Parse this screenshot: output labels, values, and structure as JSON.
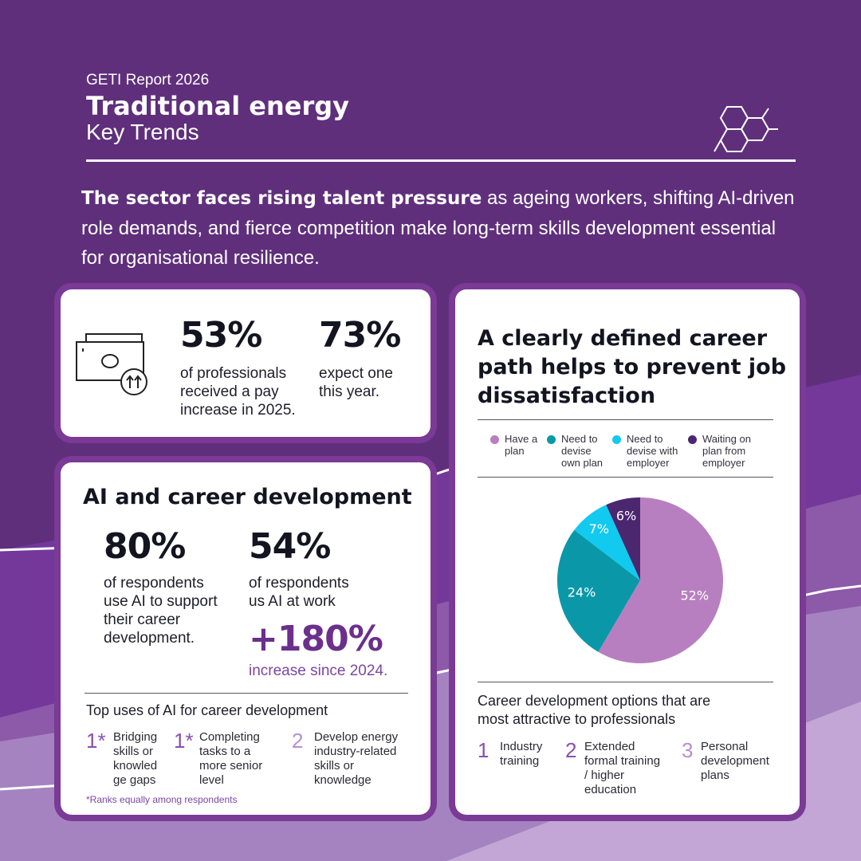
{
  "header": {
    "report": "GETI Report 2026",
    "title": "Traditional energy",
    "subtitle": "Key Trends"
  },
  "intro": {
    "bold": "The sector faces rising talent pressure",
    "rest": " as ageing workers, shifting AI-driven role demands, and fierce competition make long-term skills development essential for organisational resilience."
  },
  "pay": {
    "icon": "money-increase-icon",
    "stat1": {
      "value": "53%",
      "line1": "of professionals",
      "line2": "received a pay",
      "line3": "increase in 2025."
    },
    "stat2": {
      "value": "73%",
      "line1": "expect one",
      "line2": "this year."
    }
  },
  "ai": {
    "title": "AI and career development",
    "stat1": {
      "value": "80%",
      "line1": "of respondents",
      "line2": "use AI to support",
      "line3": "their career",
      "line4": "development."
    },
    "stat2": {
      "value": "54%",
      "line1": "of respondents",
      "line2": "us AI at work"
    },
    "stat3": {
      "value": "+180%",
      "line1": "increase since 2024."
    },
    "uses_title": "Top uses of AI for career development",
    "uses": [
      {
        "rank": "1*",
        "l1": "Bridging",
        "l2": "skills or",
        "l3": "knowled",
        "l4": "ge gaps"
      },
      {
        "rank": "1*",
        "l1": "Completing",
        "l2": "tasks to a",
        "l3": "more senior",
        "l4": "level"
      },
      {
        "rank": "2",
        "l1": "Develop energy",
        "l2": "industry-related",
        "l3": "skills or",
        "l4": "knowledge"
      }
    ],
    "footnote": "*Ranks equally among respondents"
  },
  "career": {
    "title_l1": "A clearly defined career",
    "title_l2": "path helps to prevent job",
    "title_l3": "dissatisfaction",
    "legend": [
      {
        "l1": "Have a",
        "l2": "plan",
        "l3": "",
        "color": "#b87fc0"
      },
      {
        "l1": "Need to",
        "l2": "devise",
        "l3": "own plan",
        "color": "#0a98a8"
      },
      {
        "l1": "Need to",
        "l2": "devise with",
        "l3": "employer",
        "color": "#12c9ef"
      },
      {
        "l1": "Waiting on",
        "l2": "plan from",
        "l3": "employer",
        "color": "#4b2770"
      }
    ],
    "options_title_l1": "Career development options that are",
    "options_title_l2": "most attractive to professionals",
    "options": [
      {
        "rank": "1",
        "l1": "Industry",
        "l2": "training",
        "l3": "",
        "l4": ""
      },
      {
        "rank": "2",
        "l1": "Extended",
        "l2": "formal training",
        "l3": "/ higher",
        "l4": "education"
      },
      {
        "rank": "3",
        "l1": "Personal",
        "l2": "development",
        "l3": "plans",
        "l4": ""
      }
    ]
  },
  "chart_data": {
    "type": "pie",
    "categories": [
      "Have a plan",
      "Need to devise own plan",
      "Need to devise with employer",
      "Waiting on plan from employer"
    ],
    "values": [
      52,
      24,
      7,
      6
    ],
    "labels": [
      "52%",
      "24%",
      "7%",
      "6%"
    ],
    "colors": [
      "#b87fc0",
      "#0a98a8",
      "#12c9ef",
      "#4b2770"
    ]
  }
}
